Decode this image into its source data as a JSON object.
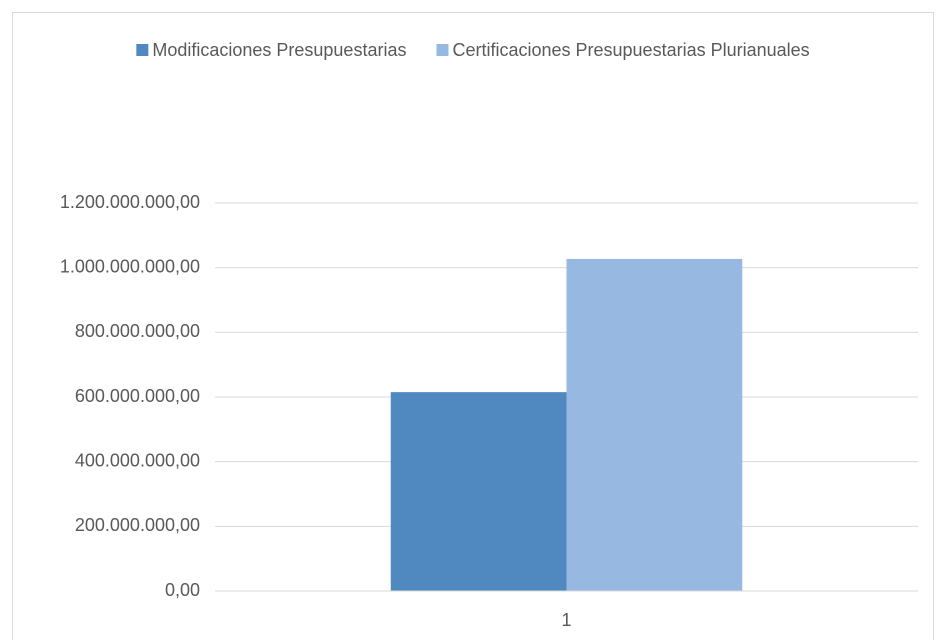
{
  "chart_data": {
    "type": "bar",
    "categories": [
      "1"
    ],
    "series": [
      {
        "name": "Modificaciones Presupuestarias",
        "color": "#4f89c0",
        "values": [
          615000000
        ]
      },
      {
        "name": "Certificaciones Presupuestarias Plurianuales",
        "color": "#97b8e0",
        "values": [
          1027000000
        ]
      }
    ],
    "ylim": [
      0,
      1200000000
    ],
    "yticks": [
      {
        "value": 0,
        "label": "0,00"
      },
      {
        "value": 200000000,
        "label": "200.000.000,00"
      },
      {
        "value": 400000000,
        "label": "400.000.000,00"
      },
      {
        "value": 600000000,
        "label": "600.000.000,00"
      },
      {
        "value": 800000000,
        "label": "800.000.000,00"
      },
      {
        "value": 1000000000,
        "label": "1.000.000.000,00"
      },
      {
        "value": 1200000000,
        "label": "1.200.000.000,00"
      }
    ],
    "grid": true,
    "legend": "top"
  }
}
